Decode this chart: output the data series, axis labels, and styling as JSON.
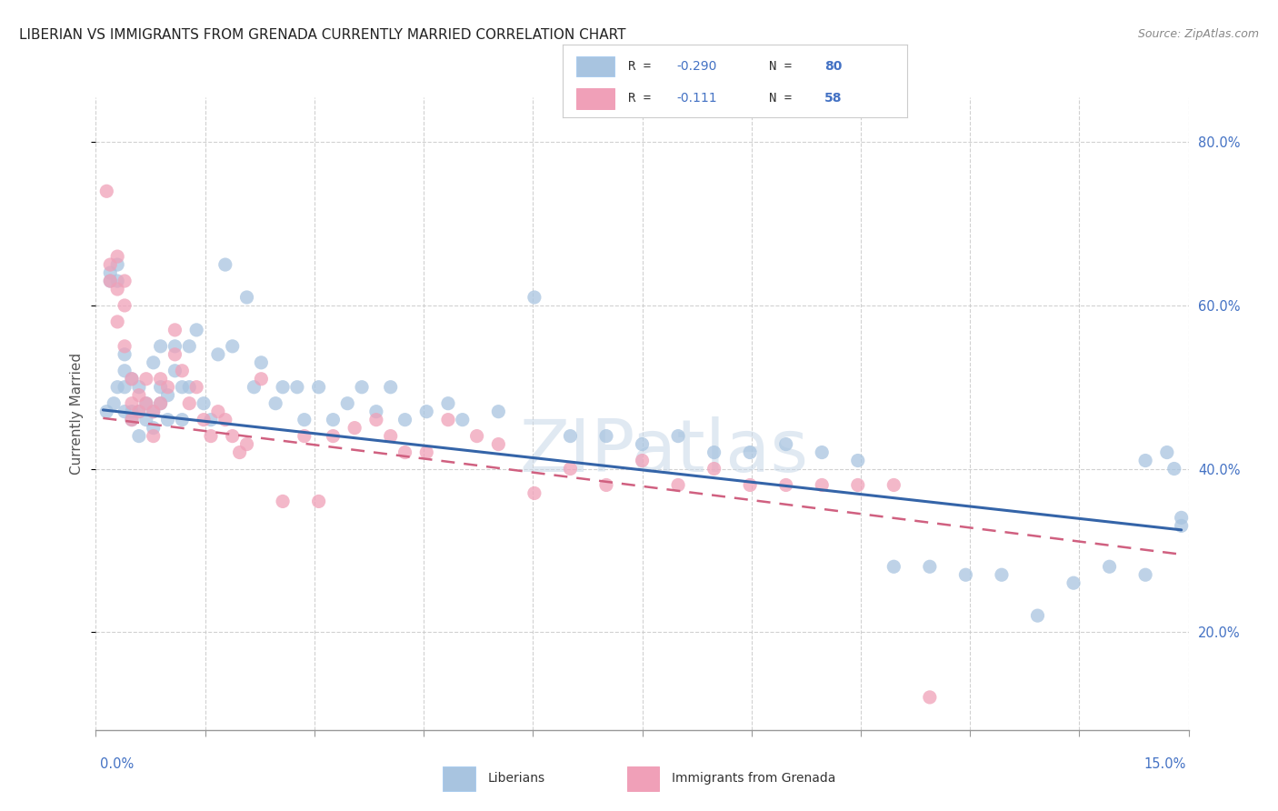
{
  "title": "LIBERIAN VS IMMIGRANTS FROM GRENADA CURRENTLY MARRIED CORRELATION CHART",
  "source": "Source: ZipAtlas.com",
  "ylabel": "Currently Married",
  "legend_blue_label": "Liberians",
  "legend_pink_label": "Immigrants from Grenada",
  "legend_blue_R": "R = -0.290",
  "legend_blue_N": "N = 80",
  "legend_pink_R": "R =  -0.111",
  "legend_pink_N": "N = 58",
  "blue_scatter_x": [
    0.0005,
    0.001,
    0.001,
    0.0015,
    0.002,
    0.002,
    0.002,
    0.003,
    0.003,
    0.003,
    0.003,
    0.004,
    0.004,
    0.004,
    0.005,
    0.005,
    0.005,
    0.006,
    0.006,
    0.007,
    0.007,
    0.007,
    0.008,
    0.008,
    0.008,
    0.009,
    0.009,
    0.01,
    0.01,
    0.011,
    0.011,
    0.012,
    0.012,
    0.013,
    0.014,
    0.015,
    0.016,
    0.017,
    0.018,
    0.02,
    0.021,
    0.022,
    0.024,
    0.025,
    0.027,
    0.028,
    0.03,
    0.032,
    0.034,
    0.036,
    0.038,
    0.04,
    0.042,
    0.045,
    0.048,
    0.05,
    0.055,
    0.06,
    0.065,
    0.07,
    0.075,
    0.08,
    0.085,
    0.09,
    0.095,
    0.1,
    0.105,
    0.11,
    0.115,
    0.12,
    0.125,
    0.13,
    0.135,
    0.14,
    0.145,
    0.145,
    0.148,
    0.149,
    0.15,
    0.15
  ],
  "blue_scatter_y": [
    0.47,
    0.63,
    0.64,
    0.48,
    0.5,
    0.63,
    0.65,
    0.47,
    0.5,
    0.52,
    0.54,
    0.46,
    0.47,
    0.51,
    0.44,
    0.47,
    0.5,
    0.46,
    0.48,
    0.45,
    0.47,
    0.53,
    0.48,
    0.5,
    0.55,
    0.46,
    0.49,
    0.52,
    0.55,
    0.46,
    0.5,
    0.5,
    0.55,
    0.57,
    0.48,
    0.46,
    0.54,
    0.65,
    0.55,
    0.61,
    0.5,
    0.53,
    0.48,
    0.5,
    0.5,
    0.46,
    0.5,
    0.46,
    0.48,
    0.5,
    0.47,
    0.5,
    0.46,
    0.47,
    0.48,
    0.46,
    0.47,
    0.61,
    0.44,
    0.44,
    0.43,
    0.44,
    0.42,
    0.42,
    0.43,
    0.42,
    0.41,
    0.28,
    0.28,
    0.27,
    0.27,
    0.22,
    0.26,
    0.28,
    0.27,
    0.41,
    0.42,
    0.4,
    0.33,
    0.34
  ],
  "pink_scatter_x": [
    0.0005,
    0.001,
    0.001,
    0.002,
    0.002,
    0.002,
    0.003,
    0.003,
    0.003,
    0.004,
    0.004,
    0.004,
    0.005,
    0.005,
    0.006,
    0.006,
    0.007,
    0.007,
    0.008,
    0.008,
    0.009,
    0.01,
    0.01,
    0.011,
    0.012,
    0.013,
    0.014,
    0.015,
    0.016,
    0.017,
    0.018,
    0.019,
    0.02,
    0.022,
    0.025,
    0.028,
    0.03,
    0.032,
    0.035,
    0.038,
    0.04,
    0.042,
    0.045,
    0.048,
    0.052,
    0.055,
    0.06,
    0.065,
    0.07,
    0.075,
    0.08,
    0.085,
    0.09,
    0.095,
    0.1,
    0.105,
    0.11,
    0.115
  ],
  "pink_scatter_y": [
    0.74,
    0.63,
    0.65,
    0.66,
    0.62,
    0.58,
    0.63,
    0.6,
    0.55,
    0.51,
    0.48,
    0.46,
    0.47,
    0.49,
    0.48,
    0.51,
    0.47,
    0.44,
    0.51,
    0.48,
    0.5,
    0.57,
    0.54,
    0.52,
    0.48,
    0.5,
    0.46,
    0.44,
    0.47,
    0.46,
    0.44,
    0.42,
    0.43,
    0.51,
    0.36,
    0.44,
    0.36,
    0.44,
    0.45,
    0.46,
    0.44,
    0.42,
    0.42,
    0.46,
    0.44,
    0.43,
    0.37,
    0.4,
    0.38,
    0.41,
    0.38,
    0.4,
    0.38,
    0.38,
    0.38,
    0.38,
    0.38,
    0.12
  ],
  "blue_line_x": [
    0.0,
    0.15
  ],
  "blue_line_y": [
    0.472,
    0.325
  ],
  "pink_line_x": [
    0.0,
    0.15
  ],
  "pink_line_y": [
    0.462,
    0.295
  ],
  "xlim": [
    -0.001,
    0.151
  ],
  "ylim": [
    0.08,
    0.855
  ],
  "yticks": [
    0.2,
    0.4,
    0.6,
    0.8
  ],
  "ytick_labels": [
    "20.0%",
    "40.0%",
    "60.0%",
    "80.0%"
  ],
  "title_color": "#222222",
  "blue_color": "#a8c4e0",
  "blue_line_color": "#3464a8",
  "pink_color": "#f0a0b8",
  "pink_line_color": "#d06080",
  "watermark": "ZIPatlas",
  "background_color": "#ffffff",
  "grid_color": "#cccccc",
  "axis_color": "#999999",
  "label_color": "#4472c4",
  "source_text": "Source: ZipAtlas.com"
}
